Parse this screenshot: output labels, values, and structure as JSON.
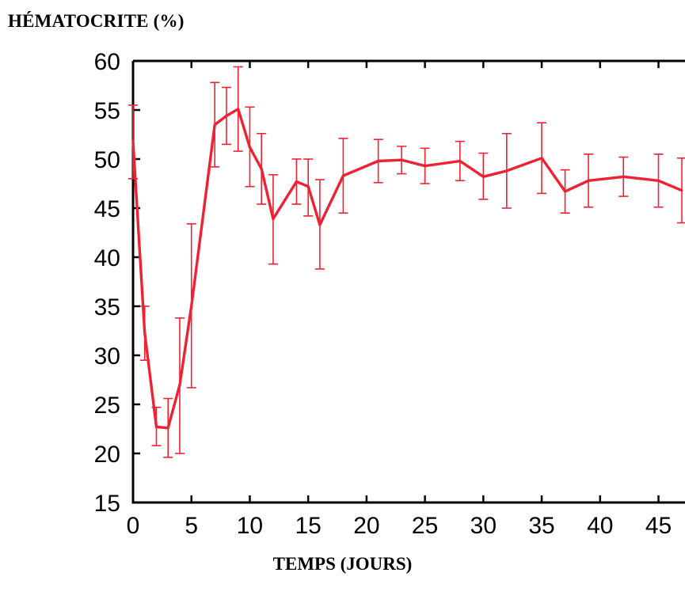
{
  "chart_data": {
    "type": "line",
    "ylabel": "HÉMATOCRITE (%)",
    "xlabel": "TEMPS (JOURS)",
    "xlim": [
      0,
      47
    ],
    "ylim": [
      15,
      60
    ],
    "xticks": [
      0,
      5,
      10,
      15,
      20,
      25,
      30,
      35,
      40,
      45
    ],
    "yticks": [
      15,
      20,
      25,
      30,
      35,
      40,
      45,
      50,
      55,
      60
    ],
    "grid": false,
    "line_color": "#ee2233",
    "series": [
      {
        "x": [
          0,
          1,
          2,
          3,
          4,
          5,
          7,
          8,
          9,
          10,
          11,
          12,
          14,
          15,
          16,
          18,
          21,
          23,
          25,
          28,
          30,
          32,
          35,
          37,
          39,
          42,
          45,
          47
        ],
        "y": [
          51.8,
          32.3,
          22.7,
          22.6,
          27.0,
          35.0,
          53.5,
          54.4,
          55.1,
          51.2,
          49.0,
          43.9,
          47.7,
          47.2,
          43.3,
          48.3,
          49.8,
          49.9,
          49.3,
          49.8,
          48.2,
          48.8,
          50.1,
          46.7,
          47.8,
          48.2,
          47.8,
          46.8
        ],
        "err_high": [
          55.5,
          35.0,
          24.7,
          25.6,
          33.8,
          43.4,
          57.8,
          57.3,
          59.4,
          55.3,
          52.6,
          48.4,
          50.0,
          50.0,
          47.9,
          52.1,
          52.0,
          51.3,
          51.1,
          51.8,
          50.6,
          52.6,
          53.7,
          48.9,
          50.5,
          50.2,
          50.5,
          50.1
        ],
        "err_low": [
          48.0,
          29.5,
          20.8,
          19.6,
          20.0,
          26.7,
          49.2,
          51.5,
          50.8,
          47.2,
          45.4,
          39.3,
          45.4,
          44.2,
          38.8,
          44.5,
          47.6,
          48.5,
          47.5,
          47.8,
          45.9,
          45.0,
          46.5,
          44.5,
          45.1,
          46.2,
          45.1,
          43.5
        ]
      }
    ]
  }
}
